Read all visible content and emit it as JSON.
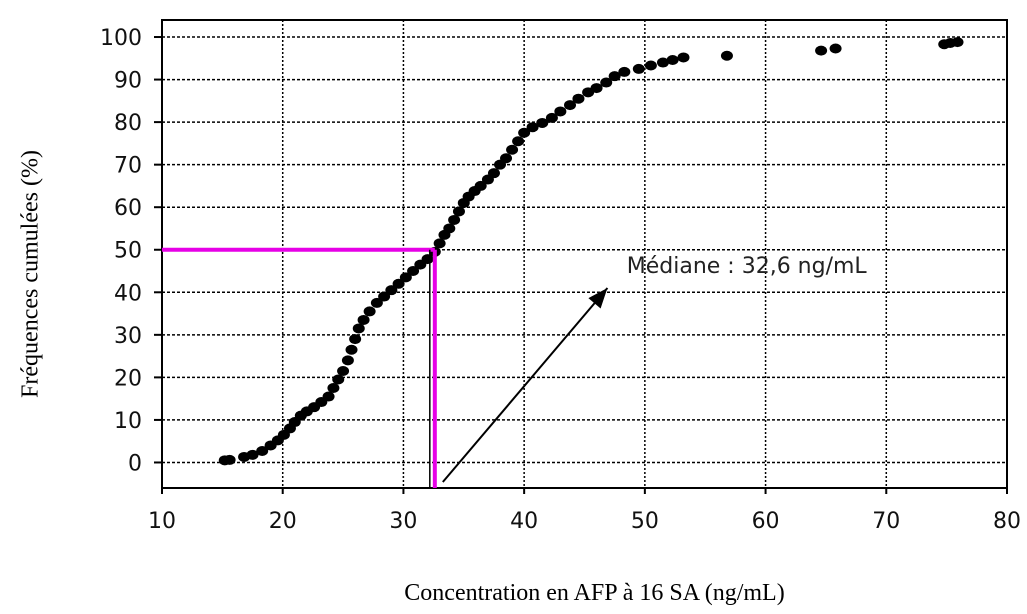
{
  "chart_data": {
    "type": "scatter",
    "title": "",
    "xlabel": "Concentration en AFP à 16 SA (ng/mL)",
    "ylabel": "Fréquences cumulées (%)",
    "xlim": [
      10,
      80
    ],
    "ylim": [
      -6,
      104
    ],
    "xticks": [
      "10",
      "20",
      "30",
      "40",
      "50",
      "60",
      "70",
      "80"
    ],
    "yticks": [
      "0",
      "10",
      "20",
      "30",
      "40",
      "50",
      "60",
      "70",
      "80",
      "90",
      "100"
    ],
    "grid": true,
    "series": [
      {
        "points": [
          [
            15.2,
            0.5
          ],
          [
            15.6,
            0.6
          ],
          [
            16.8,
            1.3
          ],
          [
            17.5,
            1.8
          ],
          [
            18.3,
            2.7
          ],
          [
            19.0,
            4.0
          ],
          [
            19.6,
            5.2
          ],
          [
            20.1,
            6.5
          ],
          [
            20.6,
            8.0
          ],
          [
            21.0,
            9.5
          ],
          [
            21.5,
            11.0
          ],
          [
            22.0,
            12.0
          ],
          [
            22.6,
            13.0
          ],
          [
            23.2,
            14.2
          ],
          [
            23.8,
            15.5
          ],
          [
            24.2,
            17.5
          ],
          [
            24.6,
            19.5
          ],
          [
            25.0,
            21.5
          ],
          [
            25.4,
            24.0
          ],
          [
            25.7,
            26.5
          ],
          [
            26.0,
            29.0
          ],
          [
            26.3,
            31.5
          ],
          [
            26.7,
            33.5
          ],
          [
            27.2,
            35.5
          ],
          [
            27.8,
            37.5
          ],
          [
            28.4,
            39.0
          ],
          [
            29.0,
            40.5
          ],
          [
            29.6,
            42.0
          ],
          [
            30.2,
            43.5
          ],
          [
            30.8,
            45.0
          ],
          [
            31.4,
            46.5
          ],
          [
            32.0,
            47.8
          ],
          [
            32.6,
            49.5
          ],
          [
            33.0,
            51.5
          ],
          [
            33.4,
            53.5
          ],
          [
            33.8,
            55.0
          ],
          [
            34.2,
            57.0
          ],
          [
            34.6,
            59.0
          ],
          [
            35.0,
            61.0
          ],
          [
            35.4,
            62.5
          ],
          [
            35.9,
            63.8
          ],
          [
            36.4,
            65.0
          ],
          [
            37.0,
            66.5
          ],
          [
            37.5,
            68.0
          ],
          [
            38.0,
            70.0
          ],
          [
            38.5,
            71.5
          ],
          [
            39.0,
            73.5
          ],
          [
            39.5,
            75.5
          ],
          [
            40.0,
            77.5
          ],
          [
            40.7,
            78.8
          ],
          [
            41.5,
            79.8
          ],
          [
            42.3,
            81.0
          ],
          [
            43.0,
            82.5
          ],
          [
            43.8,
            84.0
          ],
          [
            44.5,
            85.5
          ],
          [
            45.3,
            87.0
          ],
          [
            46.0,
            88.0
          ],
          [
            46.8,
            89.3
          ],
          [
            47.5,
            90.8
          ],
          [
            48.3,
            91.8
          ],
          [
            49.5,
            92.5
          ],
          [
            50.5,
            93.3
          ],
          [
            51.5,
            94.0
          ],
          [
            52.3,
            94.6
          ],
          [
            53.2,
            95.2
          ],
          [
            56.8,
            95.6
          ],
          [
            64.6,
            96.8
          ],
          [
            65.8,
            97.3
          ],
          [
            74.8,
            98.3
          ],
          [
            75.3,
            98.6
          ],
          [
            75.9,
            98.8
          ]
        ]
      }
    ],
    "median": {
      "value": 32.6,
      "percent": 50
    },
    "annotation": "Médiane : 32,6 ng/mL",
    "colors": {
      "points": "#000000",
      "median_lines": "#e600e6",
      "grid": "#000000"
    }
  }
}
